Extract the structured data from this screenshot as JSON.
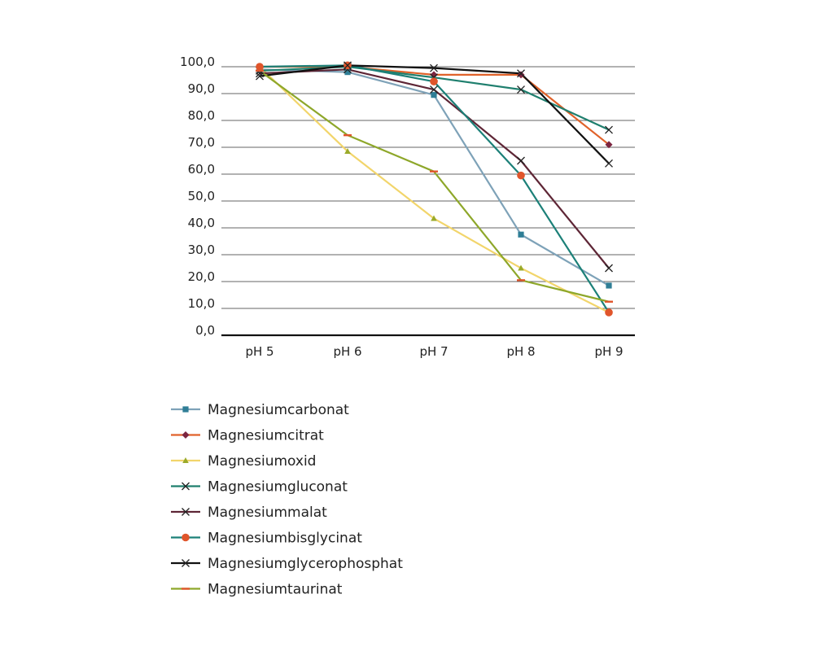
{
  "chart_data": {
    "type": "line",
    "categories": [
      "pH 5",
      "pH 6",
      "pH 7",
      "pH 8",
      "pH 9"
    ],
    "ylim": [
      0,
      100
    ],
    "yticks": [
      "0,0",
      "10,0",
      "20,0",
      "30,0",
      "40,0",
      "50,0",
      "60,0",
      "70,0",
      "80,0",
      "90,0",
      "100,0"
    ],
    "grid": true,
    "legend_position": "bottom-left",
    "series": [
      {
        "name": "Magnesiumcarbonat",
        "color": "#7ea2b8",
        "markerColor": "#2f7e96",
        "marker": "square",
        "values": [
          99,
          98,
          89.5,
          37.5,
          18.5
        ]
      },
      {
        "name": "Magnesiumcitrat",
        "color": "#e0622a",
        "markerColor": "#7c2540",
        "marker": "diamond",
        "values": [
          100,
          100,
          97,
          97,
          71
        ]
      },
      {
        "name": "Magnesiumoxid",
        "color": "#f2d56b",
        "markerColor": "#9aaa2a",
        "marker": "triangle",
        "values": [
          100,
          68.5,
          43.5,
          25,
          8.5
        ]
      },
      {
        "name": "Magnesiumgluconat",
        "color": "#1f7f6e",
        "markerColor": "#222222",
        "marker": "x",
        "values": [
          98.5,
          100,
          96,
          91.5,
          76.5
        ]
      },
      {
        "name": "Magnesiummalat",
        "color": "#5e2636",
        "markerColor": "#222222",
        "marker": "x",
        "values": [
          97.5,
          99,
          91.5,
          65,
          25
        ]
      },
      {
        "name": "Magnesiumbisglycinat",
        "color": "#1c8078",
        "markerColor": "#e0552b",
        "marker": "circle",
        "values": [
          100,
          100.5,
          94.5,
          59.5,
          8.5
        ]
      },
      {
        "name": "Magnesiumglycerophosphat",
        "color": "#111111",
        "markerColor": "#222222",
        "marker": "x",
        "values": [
          96.5,
          100.5,
          99.5,
          97.5,
          64
        ]
      },
      {
        "name": "Magnesiumtaurinat",
        "color": "#8ea72a",
        "markerColor": "#e0552b",
        "marker": "dash",
        "values": [
          98.5,
          74.5,
          61,
          20.5,
          12.5
        ]
      }
    ]
  }
}
